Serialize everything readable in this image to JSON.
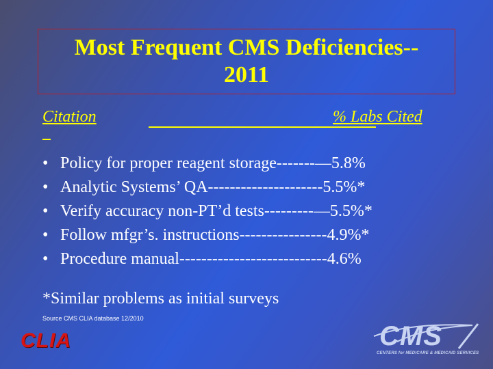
{
  "slide": {
    "title_line1": "Most Frequent CMS Deficiencies--",
    "title_line2": "2011",
    "header": {
      "citation": "Citation",
      "labs_cited": "% Labs Cited"
    },
    "bullet_symbol": "•",
    "items": [
      {
        "text": "Policy for proper reagent storage-------—5.8%"
      },
      {
        "text": "Analytic Systems’ QA---------------------5.5%*"
      },
      {
        "text": "Verify accuracy non-PT’d tests---------—5.5%*"
      },
      {
        "text": "Follow mfgr’s. instructions----------------4.9%*"
      },
      {
        "text": "Procedure manual---------------------------4.6%"
      }
    ],
    "footnote": "*Similar problems as initial surveys",
    "source": "Source CMS CLIA database 12/2010"
  },
  "logos": {
    "clia": "CLIA",
    "cms": "CMS",
    "cms_subtitle": "CENTERS for MEDICARE & MEDICAID SERVICES"
  },
  "colors": {
    "title": "#ffff00",
    "body_text": "#ffffff",
    "clia_logo": "#d81515",
    "title_border": "#b8202a"
  }
}
